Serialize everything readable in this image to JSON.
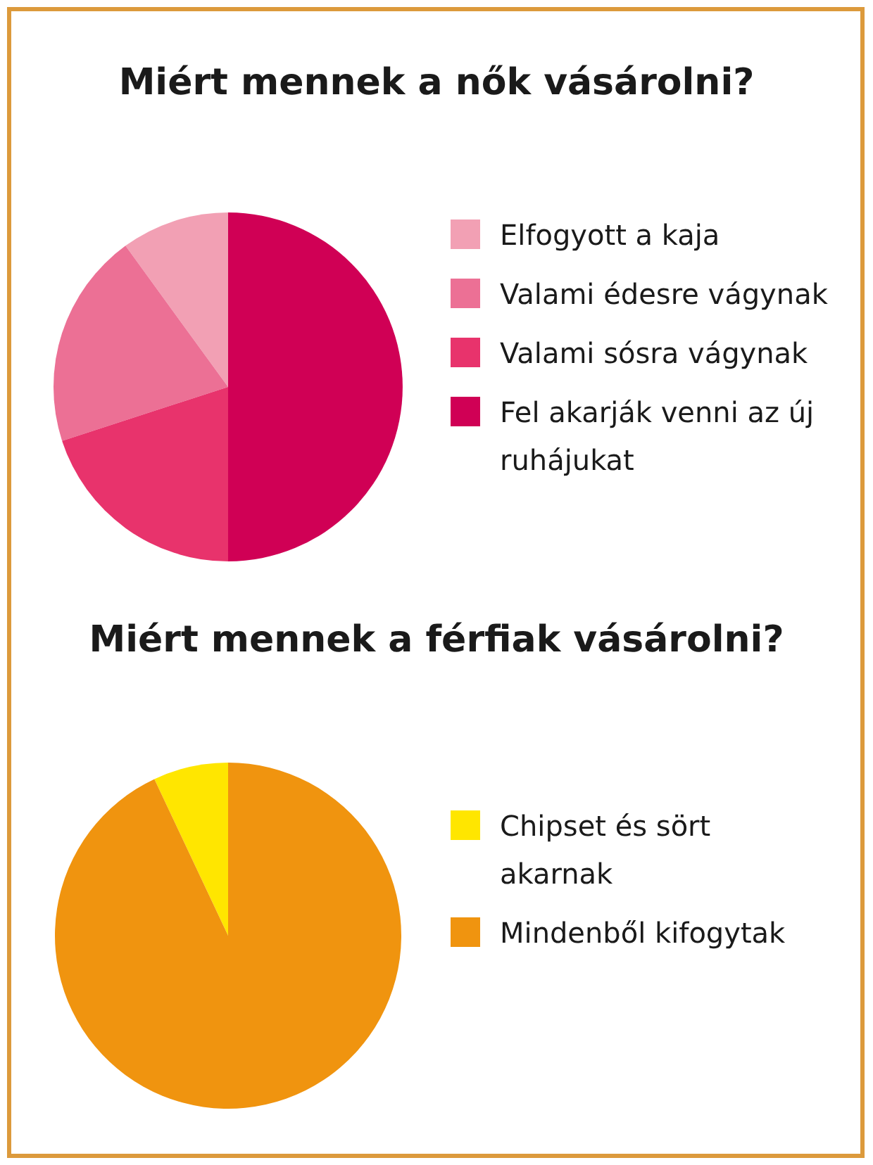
{
  "chart_data": [
    {
      "type": "pie",
      "title": "Miért mennek a nők vásárolni?",
      "categories": [
        "Elfogyott a kaja",
        "Valami édesre vágynak",
        "Valami sósra vágynak",
        "Fel akarják venni az új ruhájukat"
      ],
      "values": [
        10,
        20,
        20,
        50
      ],
      "colors": [
        "#f2a0b4",
        "#ec7095",
        "#e8336c",
        "#d00055"
      ],
      "legend": "right"
    },
    {
      "type": "pie",
      "title": "Miért mennek a férfiak vásárolni?",
      "categories": [
        "Chipset és sört akarnak",
        "Mindenből kifogytak"
      ],
      "values": [
        7,
        93
      ],
      "colors": [
        "#ffe600",
        "#f0940f"
      ],
      "legend": "right"
    }
  ]
}
